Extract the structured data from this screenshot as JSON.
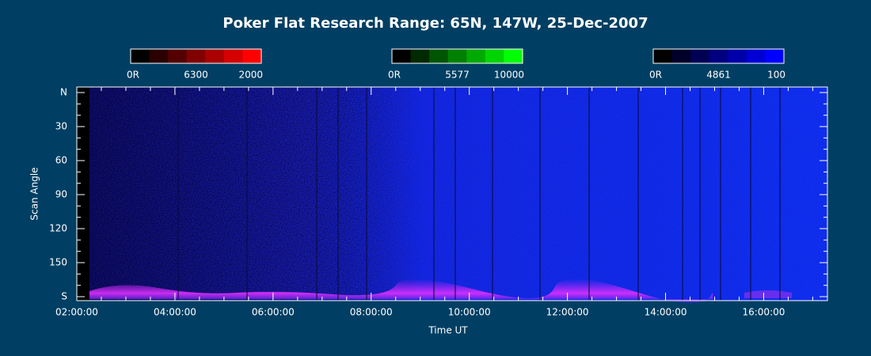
{
  "chart_data": {
    "type": "keogram",
    "title": "Poker Flat Research Range: 65N, 147W, 25-Dec-2007",
    "xlabel": "Time UT",
    "ylabel": "Scan Angle",
    "xlim": [
      2,
      17.3
    ],
    "xticks": [
      {
        "value": 2,
        "label": "02:00:00"
      },
      {
        "value": 4,
        "label": "04:00:00"
      },
      {
        "value": 6,
        "label": "06:00:00"
      },
      {
        "value": 8,
        "label": "08:00:00"
      },
      {
        "value": 10,
        "label": "10:00:00"
      },
      {
        "value": 12,
        "label": "12:00:00"
      },
      {
        "value": 14,
        "label": "14:00:00"
      },
      {
        "value": 16,
        "label": "16:00:00"
      }
    ],
    "ylim": [
      0,
      180
    ],
    "yticks": [
      {
        "value": 0,
        "label": "N"
      },
      30,
      60,
      90,
      120,
      150,
      {
        "value": 180,
        "label": "S"
      }
    ],
    "colorbars": [
      {
        "min_label": "0R",
        "wavelength": "6300",
        "max": 2000,
        "colors": [
          "#000000",
          "#2a0000",
          "#550000",
          "#800000",
          "#aa0000",
          "#d50000",
          "#ff0000"
        ]
      },
      {
        "min_label": "0R",
        "wavelength": "5577",
        "max": 10000,
        "colors": [
          "#000000",
          "#002a00",
          "#005500",
          "#008000",
          "#00aa00",
          "#00d500",
          "#00ff00"
        ]
      },
      {
        "min_label": "0R",
        "wavelength": "4861",
        "max": 100,
        "colors": [
          "#000000",
          "#00002a",
          "#000055",
          "#000080",
          "#0000aa",
          "#0000d5",
          "#0000ff"
        ]
      }
    ]
  }
}
